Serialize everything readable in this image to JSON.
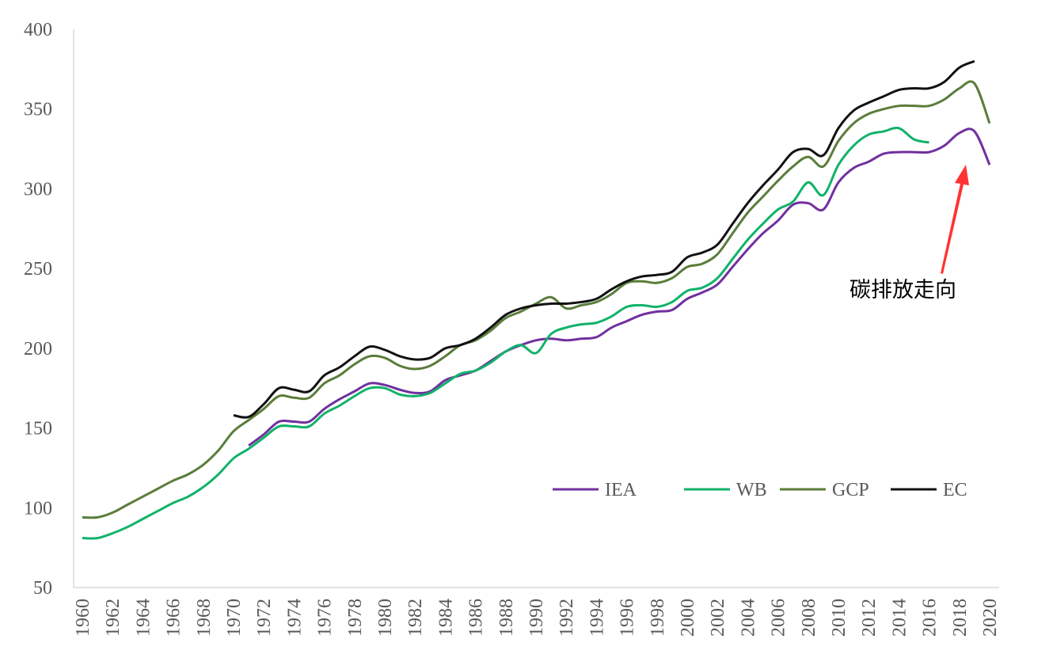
{
  "chart_data": {
    "type": "line",
    "title": "",
    "xlabel": "",
    "ylabel": "",
    "ylim": [
      50,
      400
    ],
    "yticks": [
      50,
      100,
      150,
      200,
      250,
      300,
      350,
      400
    ],
    "xlim": [
      1960,
      2020
    ],
    "xticks": [
      1960,
      1962,
      1964,
      1966,
      1968,
      1970,
      1972,
      1974,
      1976,
      1978,
      1980,
      1982,
      1984,
      1986,
      1988,
      1990,
      1992,
      1994,
      1996,
      1998,
      2000,
      2002,
      2004,
      2006,
      2008,
      2010,
      2012,
      2014,
      2016,
      2018,
      2020
    ],
    "grid": false,
    "legend_position": "bottom-right",
    "annotation": {
      "text": "碳排放走向",
      "arrow_color": "#ff3333",
      "points_to_year": 2018
    },
    "series": [
      {
        "name": "IEA",
        "color": "#7030a0",
        "start": 1971,
        "values": [
          139,
          146,
          154,
          154,
          154,
          162,
          168,
          173,
          178,
          177,
          174,
          172,
          173,
          180,
          183,
          186,
          192,
          198,
          202,
          205,
          206,
          205,
          206,
          207,
          213,
          217,
          221,
          223,
          224,
          231,
          235,
          240,
          251,
          262,
          272,
          280,
          290,
          291,
          287,
          304,
          313,
          317,
          322,
          323,
          323,
          323,
          327,
          335,
          336,
          315
        ]
      },
      {
        "name": "WB",
        "color": "#12b26a",
        "start": 1960,
        "values": [
          81,
          81,
          84,
          88,
          93,
          98,
          103,
          107,
          113,
          121,
          131,
          137,
          144,
          151,
          151,
          151,
          159,
          164,
          170,
          175,
          175,
          171,
          170,
          172,
          178,
          184,
          186,
          191,
          198,
          202,
          197,
          209,
          213,
          215,
          216,
          220,
          226,
          227,
          226,
          229,
          236,
          238,
          244,
          256,
          268,
          278,
          287,
          292,
          304,
          296,
          315,
          327,
          334,
          336,
          338,
          331,
          329
        ]
      },
      {
        "name": "GCP",
        "color": "#5a7d3a",
        "start": 1960,
        "values": [
          94,
          94,
          97,
          102,
          107,
          112,
          117,
          121,
          127,
          136,
          148,
          155,
          162,
          170,
          169,
          169,
          178,
          183,
          190,
          195,
          194,
          189,
          187,
          189,
          195,
          202,
          205,
          211,
          219,
          223,
          228,
          232,
          225,
          227,
          229,
          234,
          241,
          242,
          241,
          244,
          251,
          253,
          259,
          272,
          285,
          295,
          305,
          314,
          320,
          314,
          330,
          341,
          347,
          350,
          352,
          352,
          352,
          356,
          363,
          366,
          341
        ]
      },
      {
        "name": "EC",
        "color": "#111111",
        "start": 1970,
        "values": [
          158,
          157,
          165,
          175,
          174,
          173,
          183,
          188,
          195,
          201,
          199,
          195,
          193,
          194,
          200,
          202,
          206,
          213,
          221,
          225,
          227,
          228,
          228,
          229,
          231,
          237,
          242,
          245,
          246,
          248,
          257,
          260,
          265,
          278,
          291,
          302,
          312,
          323,
          325,
          321,
          338,
          349,
          354,
          358,
          362,
          363,
          363,
          367,
          376,
          380
        ]
      }
    ]
  }
}
